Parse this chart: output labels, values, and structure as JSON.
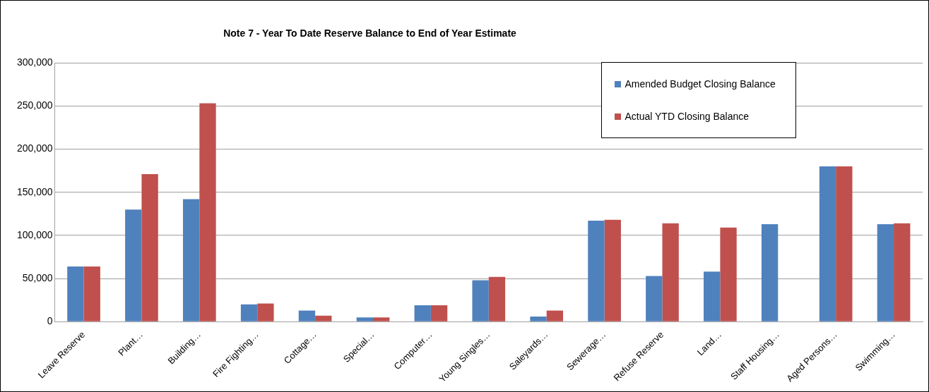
{
  "chart_data": {
    "type": "bar",
    "title": "Note 7 - Year To Date Reserve Balance to End of Year Estimate",
    "categories": [
      "Leave Reserve",
      "Plant…",
      "Building…",
      "Fire Fighting…",
      "Cottage…",
      "Special…",
      "Computer…",
      "Young Singles…",
      "Saleyards…",
      "Sewerage…",
      "Refuse Reserve",
      "Land…",
      "Staff Housing…",
      "Aged Persons…",
      "Swimming…"
    ],
    "series": [
      {
        "name": "Amended Budget Closing Balance",
        "color": "#4f81bd",
        "values": [
          64000,
          130000,
          142000,
          20000,
          13000,
          5000,
          19000,
          48000,
          6000,
          117000,
          53000,
          58000,
          113000,
          180000,
          113000
        ]
      },
      {
        "name": "Actual YTD Closing Balance",
        "color": "#c0504d",
        "values": [
          64000,
          171000,
          253000,
          21000,
          7000,
          5000,
          19000,
          52000,
          13000,
          118000,
          114000,
          109000,
          null,
          180000,
          114000
        ]
      }
    ],
    "ylim": [
      0,
      300000
    ],
    "yticks": [
      0,
      {
        "value": 50000,
        "label": "50,000"
      },
      {
        "value": 100000,
        "label": "100,000"
      },
      {
        "value": 150000,
        "label": "150,000"
      },
      {
        "value": 200000,
        "label": "200,000"
      },
      {
        "value": 250000,
        "label": "250,000"
      },
      {
        "value": 300000,
        "label": "300,000"
      }
    ],
    "grid": "y",
    "legend": "top right"
  }
}
